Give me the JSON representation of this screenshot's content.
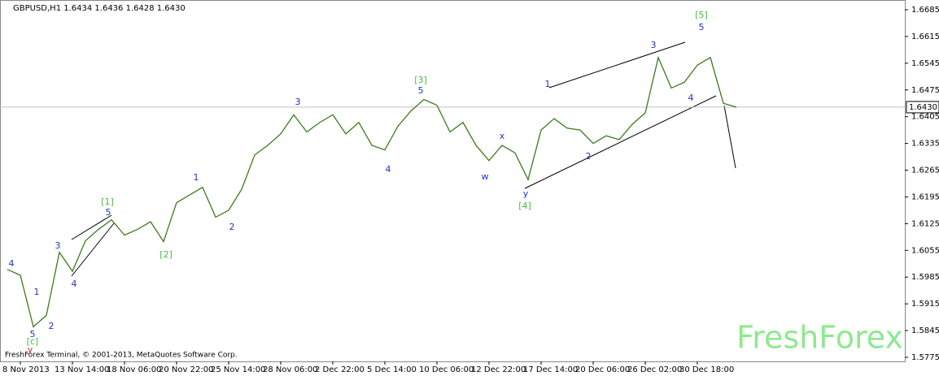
{
  "chart_data": {
    "type": "line",
    "header": "GBPUSD,H1  1.6434 1.6436 1.6428 1.6430",
    "footer": "FreshForex Terminal, © 2001-2013, MetaQuotes Software Corp.",
    "watermark": "FreshForex",
    "color": "#3d7a1e",
    "categories": [
      null,
      "8 Nov 2013",
      null,
      null,
      null,
      "13 Nov 14:00",
      null,
      null,
      null,
      "18 Nov 06:00",
      null,
      null,
      null,
      "20 Nov 22:00",
      null,
      null,
      null,
      "25 Nov 14:00",
      null,
      null,
      null,
      "28 Nov 06:00",
      null,
      null,
      null,
      "2 Dec 22:00",
      null,
      null,
      null,
      "5 Dec 14:00",
      null,
      null,
      null,
      "10 Dec 06:00",
      null,
      null,
      null,
      "12 Dec 22:00",
      null,
      null,
      null,
      "17 Dec 14:00",
      null,
      null,
      null,
      "20 Dec 06:00",
      null,
      null,
      null,
      "26 Dec 02:00",
      null,
      null,
      null,
      "30 Dec 18:00",
      null,
      null,
      null
    ],
    "values": [
      1.6005,
      1.599,
      1.5855,
      1.5885,
      1.605,
      1.6,
      1.608,
      1.611,
      1.6135,
      1.6095,
      1.611,
      1.613,
      1.6078,
      1.618,
      1.62,
      1.622,
      1.6142,
      1.616,
      1.6215,
      1.6305,
      1.633,
      1.636,
      1.641,
      1.6365,
      1.639,
      1.641,
      1.636,
      1.639,
      1.633,
      1.6318,
      1.638,
      1.642,
      1.645,
      1.6435,
      1.6365,
      1.639,
      1.633,
      1.629,
      1.633,
      1.631,
      1.624,
      1.637,
      1.64,
      1.6375,
      1.637,
      1.6335,
      1.6355,
      1.6345,
      1.6385,
      1.6415,
      1.656,
      1.648,
      1.6495,
      1.654,
      1.656,
      1.644,
      1.643
    ],
    "ylim": [
      1.5775,
      1.6685
    ],
    "yticks": [
      1.6685,
      1.6615,
      1.6545,
      1.6475,
      1.6405,
      1.6335,
      1.6265,
      1.6195,
      1.6125,
      1.6055,
      1.5985,
      1.5915,
      1.5845,
      1.5775
    ],
    "current_price": {
      "value": 1.643,
      "label": "1.6430"
    },
    "annotations": [
      {
        "text": "4",
        "color": "#2233bb"
      },
      {
        "text": "1",
        "color": "#2233bb"
      },
      {
        "text": "5",
        "color": "#2233bb"
      },
      {
        "text": "2",
        "color": "#2233bb"
      },
      {
        "text": "[c]",
        "color": "#44bb44"
      },
      {
        "text": "y",
        "color": "#dd2222"
      },
      {
        "text": "3",
        "color": "#2233bb"
      },
      {
        "text": "4",
        "color": "#2233bb"
      },
      {
        "text": "5",
        "color": "#2233bb"
      },
      {
        "text": "[1]",
        "color": "#44bb44"
      },
      {
        "text": "[2]",
        "color": "#44bb44"
      },
      {
        "text": "1",
        "color": "#2233bb"
      },
      {
        "text": "2",
        "color": "#2233bb"
      },
      {
        "text": "3",
        "color": "#2233bb"
      },
      {
        "text": "4",
        "color": "#2233bb"
      },
      {
        "text": "5",
        "color": "#2233bb"
      },
      {
        "text": "[3]",
        "color": "#44bb44"
      },
      {
        "text": "w",
        "color": "#2233bb"
      },
      {
        "text": "x",
        "color": "#2233bb"
      },
      {
        "text": "y",
        "color": "#2233bb"
      },
      {
        "text": "[4]",
        "color": "#44bb44"
      },
      {
        "text": "1",
        "color": "#2233bb"
      },
      {
        "text": "2",
        "color": "#2233bb"
      },
      {
        "text": "3",
        "color": "#2233bb"
      },
      {
        "text": "4",
        "color": "#2233bb"
      },
      {
        "text": "5",
        "color": "#2233bb"
      },
      {
        "text": "[5]",
        "color": "#44bb44"
      }
    ]
  }
}
